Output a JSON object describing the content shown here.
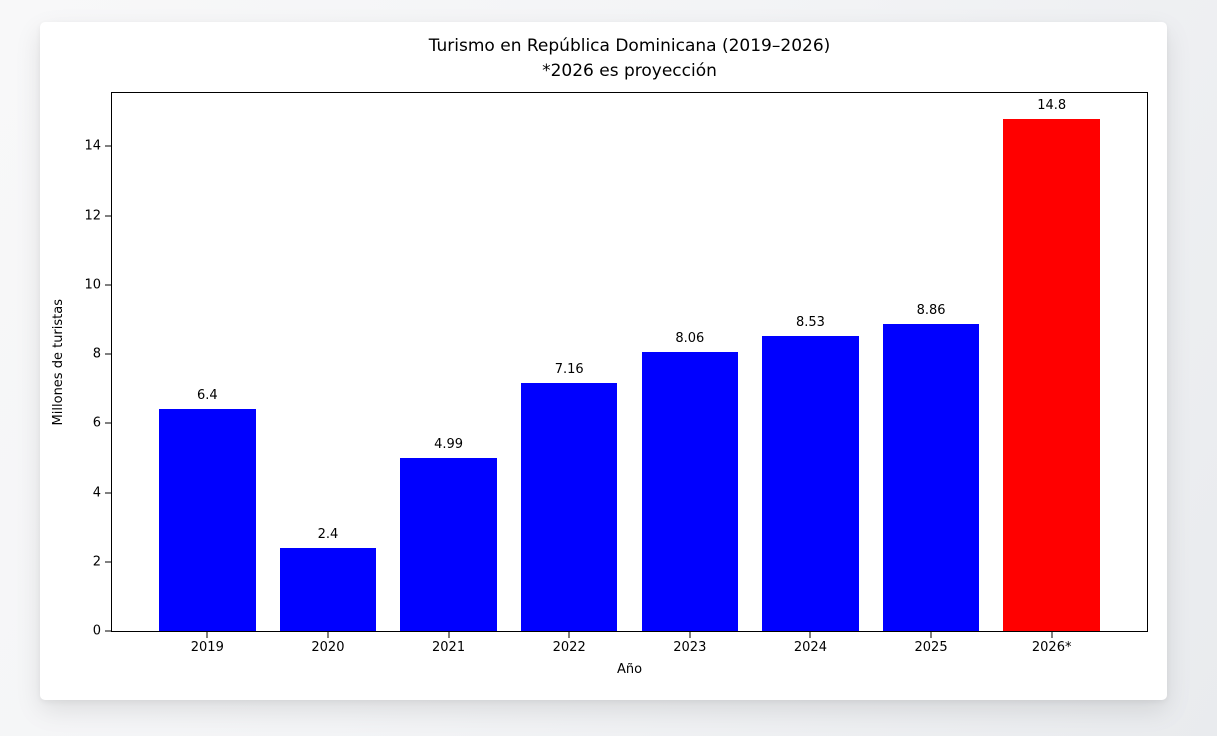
{
  "page": {
    "background_color": "#f3f4f6",
    "card_color": "#ffffff"
  },
  "chart_data": {
    "type": "bar",
    "title": "Turismo en República Dominicana (2019–2026)",
    "subtitle": "*2026 es proyección",
    "xlabel": "Año",
    "ylabel": "Millones de turistas",
    "categories": [
      "2019",
      "2020",
      "2021",
      "2022",
      "2023",
      "2024",
      "2025",
      "2026*"
    ],
    "values": [
      6.4,
      2.4,
      4.99,
      7.16,
      8.06,
      8.53,
      8.86,
      14.8
    ],
    "bar_labels": [
      "6.4",
      "2.4",
      "4.99",
      "7.16",
      "8.06",
      "8.53",
      "8.86",
      "14.8"
    ],
    "bar_colors": [
      "#0000ff",
      "#0000ff",
      "#0000ff",
      "#0000ff",
      "#0000ff",
      "#0000ff",
      "#0000ff",
      "#ff0000"
    ],
    "default_color": "#0000ff",
    "highlight_color": "#ff0000",
    "yticks": [
      0,
      2,
      4,
      6,
      8,
      10,
      12,
      14
    ],
    "ylim": [
      0,
      15.54
    ],
    "xlim": [
      -0.79,
      7.79
    ],
    "bar_width": 0.8,
    "grid": false,
    "legend": "none",
    "axis_color": "#000000",
    "text_color": "#000000"
  }
}
